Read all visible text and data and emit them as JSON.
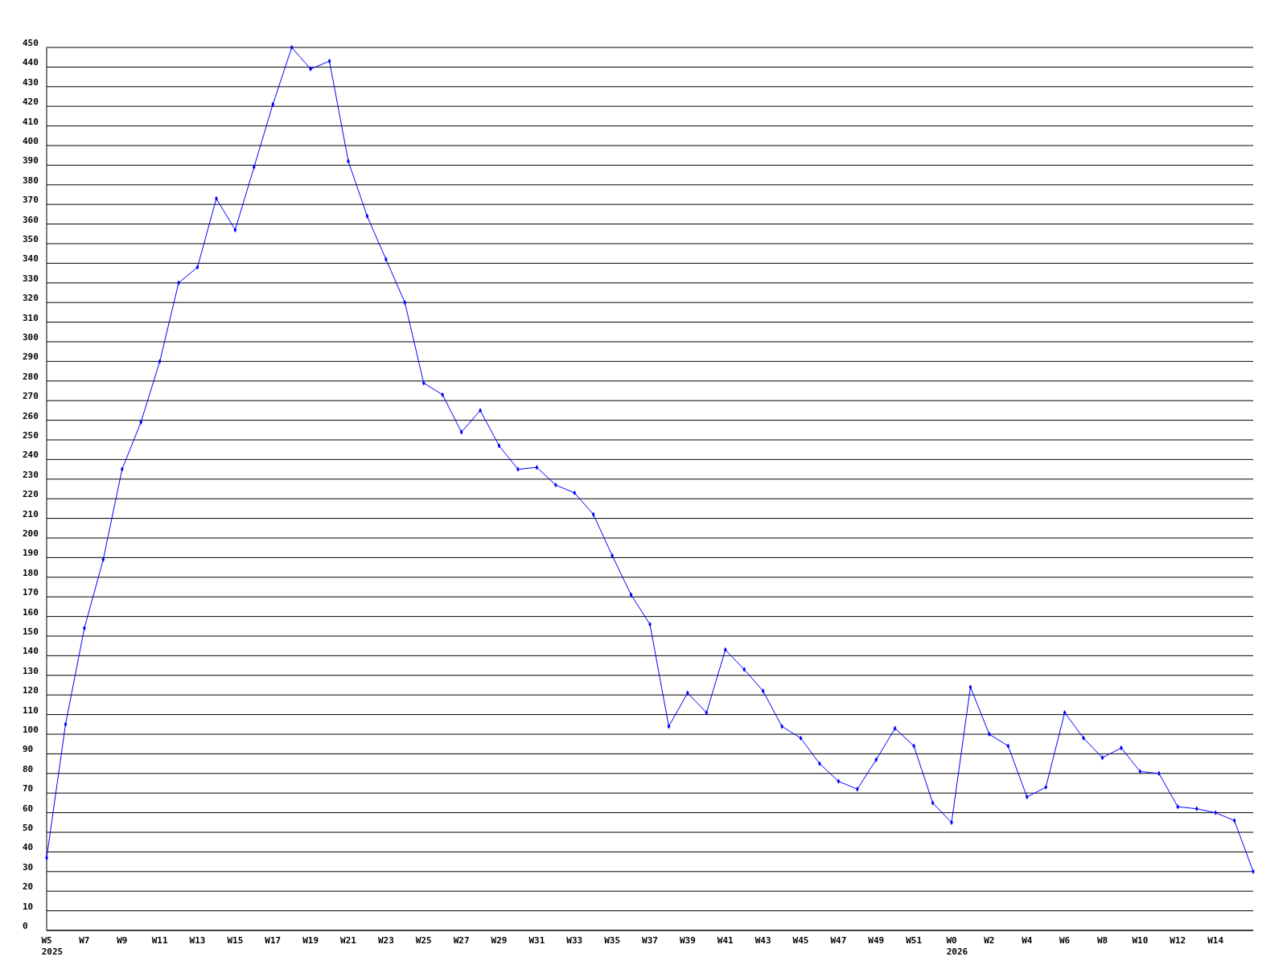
{
  "chart_data": {
    "type": "line",
    "categories": [
      "W5\n2025",
      null,
      "W7",
      null,
      "W9",
      null,
      "W11",
      null,
      "W13",
      null,
      "W15",
      null,
      "W17",
      null,
      "W19",
      null,
      "W21",
      null,
      "W23",
      null,
      "W25",
      null,
      "W27",
      null,
      "W29",
      null,
      "W31",
      null,
      "W33",
      null,
      "W35",
      null,
      "W37",
      null,
      "W39",
      null,
      "W41",
      null,
      "W43",
      null,
      "W45",
      null,
      "W47",
      null,
      "W49",
      null,
      "W51",
      null,
      "W0\n2026",
      null,
      "W2",
      null,
      "W4",
      null,
      "W6",
      null,
      "W8",
      null,
      "W10",
      null,
      "W12",
      null,
      "W14",
      null,
      null
    ],
    "series": [
      {
        "color": "#0000ff",
        "values": [
          37,
          105,
          154,
          189,
          235,
          259,
          290,
          330,
          338,
          373,
          357,
          389,
          421,
          450,
          439,
          443,
          392,
          364,
          342,
          320,
          279,
          273,
          254,
          265,
          247,
          235,
          236,
          227,
          223,
          212,
          191,
          171,
          156,
          104,
          121,
          111,
          143,
          133,
          122,
          104,
          98,
          85,
          76,
          72,
          87,
          103,
          94,
          65,
          55,
          124,
          100,
          94,
          68,
          73,
          111,
          98,
          88,
          93,
          81,
          80,
          63,
          62,
          60,
          56,
          30
        ]
      }
    ],
    "ylim": [
      0,
      450
    ],
    "yticks": [
      0,
      10,
      20,
      30,
      40,
      50,
      60,
      70,
      80,
      90,
      100,
      110,
      120,
      130,
      140,
      150,
      160,
      170,
      180,
      190,
      200,
      210,
      220,
      230,
      240,
      250,
      260,
      270,
      280,
      290,
      300,
      310,
      320,
      330,
      340,
      350,
      360,
      370,
      380,
      390,
      400,
      410,
      420,
      430,
      440,
      450
    ],
    "grid": "y",
    "marker": "diamond",
    "line_style": "solid"
  }
}
